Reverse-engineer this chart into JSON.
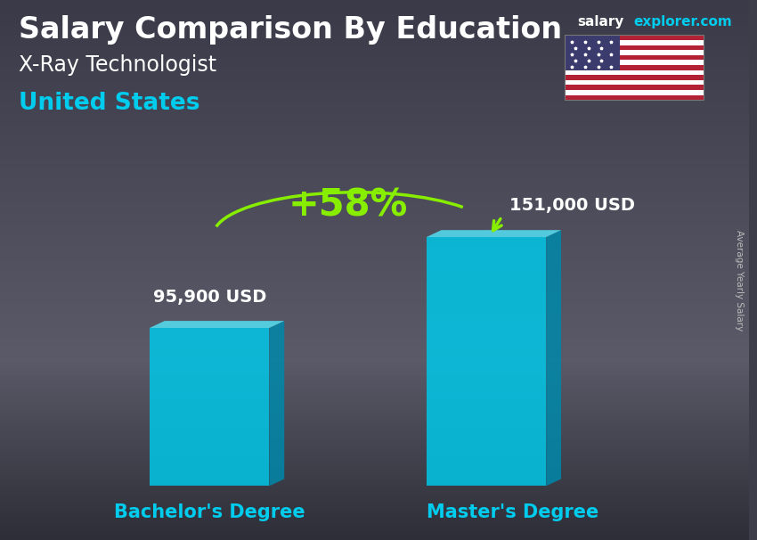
{
  "title1": "Salary Comparison By Education",
  "title2": "X-Ray Technologist",
  "title3": "United States",
  "site_salary": "salary",
  "site_rest": "explorer.com",
  "categories": [
    "Bachelor's Degree",
    "Master's Degree"
  ],
  "values": [
    95900,
    151000
  ],
  "labels": [
    "95,900 USD",
    "151,000 USD"
  ],
  "pct_change": "+58%",
  "bar_face_color": "#00c8e8",
  "bar_top_color": "#55e0f5",
  "bar_side_color": "#0088aa",
  "bar_alpha": 0.85,
  "bg_top_color": "#5a5a6a",
  "bg_bottom_color": "#3a3a45",
  "text_color_white": "#ffffff",
  "text_color_cyan": "#00ccee",
  "text_color_green": "#88ee00",
  "arrow_color": "#88ee00",
  "axis_label_color": "#00ccee",
  "side_label": "Average Yearly Salary",
  "pct_fontsize": 30,
  "title_fontsize": 24,
  "subtitle_fontsize": 17,
  "country_fontsize": 19,
  "label_fontsize": 14,
  "category_fontsize": 15,
  "site_fontsize": 11
}
